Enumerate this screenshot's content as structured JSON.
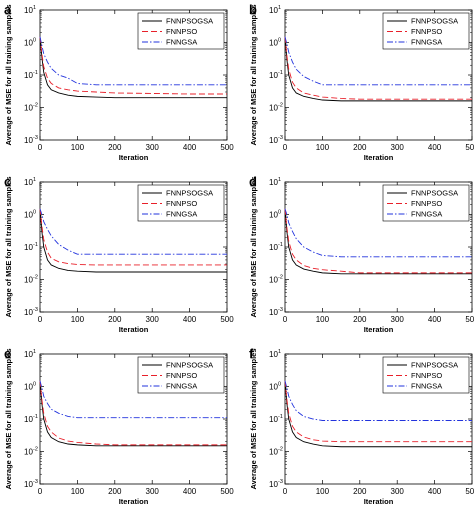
{
  "chart_data": [
    {
      "panel": "a",
      "type": "line",
      "xlabel": "Iteration",
      "ylabel": "Average of MSE for all training samples",
      "xlim": [
        0,
        500
      ],
      "ylim": [
        0.001,
        10
      ],
      "yscale": "log",
      "xticks": [
        0,
        100,
        200,
        300,
        400,
        500
      ],
      "yticks": [
        "10^{-3}",
        "10^{-2}",
        "10^{-1}",
        "10^{0}",
        "10^{1}"
      ],
      "legend_position": "top-right",
      "x": [
        0,
        5,
        10,
        20,
        30,
        50,
        75,
        100,
        150,
        200,
        300,
        400,
        500
      ],
      "series": [
        {
          "name": "FNNPSOGSA",
          "color": "#000000",
          "dash": "solid",
          "values": [
            1.5,
            0.35,
            0.12,
            0.05,
            0.035,
            0.028,
            0.024,
            0.022,
            0.021,
            0.02,
            0.02,
            0.02,
            0.02
          ]
        },
        {
          "name": "FNNPSO",
          "color": "#e8202a",
          "dash": "dashed",
          "values": [
            1.5,
            0.45,
            0.18,
            0.08,
            0.055,
            0.04,
            0.035,
            0.032,
            0.03,
            0.028,
            0.027,
            0.026,
            0.026
          ]
        },
        {
          "name": "FNNGSA",
          "color": "#2233dd",
          "dash": "dashdot",
          "values": [
            1.5,
            0.8,
            0.45,
            0.25,
            0.16,
            0.1,
            0.08,
            0.055,
            0.05,
            0.05,
            0.05,
            0.05,
            0.05
          ]
        }
      ]
    },
    {
      "panel": "b",
      "type": "line",
      "xlabel": "Iteration",
      "ylabel": "Average of MSE for all training samples",
      "xlim": [
        0,
        500
      ],
      "ylim": [
        0.001,
        10
      ],
      "yscale": "log",
      "xticks": [
        0,
        100,
        200,
        300,
        400,
        500
      ],
      "yticks": [
        "10^{-3}",
        "10^{-2}",
        "10^{-1}",
        "10^{0}",
        "10^{1}"
      ],
      "legend_position": "top-right",
      "x": [
        0,
        5,
        10,
        20,
        30,
        50,
        75,
        100,
        150,
        200,
        300,
        400,
        500
      ],
      "series": [
        {
          "name": "FNNPSOGSA",
          "color": "#000000",
          "dash": "solid",
          "values": [
            1.5,
            0.3,
            0.1,
            0.04,
            0.028,
            0.022,
            0.019,
            0.017,
            0.016,
            0.016,
            0.016,
            0.016,
            0.016
          ]
        },
        {
          "name": "FNNPSO",
          "color": "#e8202a",
          "dash": "dashed",
          "values": [
            1.5,
            0.4,
            0.15,
            0.06,
            0.04,
            0.028,
            0.024,
            0.021,
            0.019,
            0.018,
            0.018,
            0.018,
            0.018
          ]
        },
        {
          "name": "FNNGSA",
          "color": "#2233dd",
          "dash": "dashdot",
          "values": [
            1.5,
            0.9,
            0.5,
            0.25,
            0.15,
            0.09,
            0.065,
            0.05,
            0.05,
            0.05,
            0.05,
            0.05,
            0.05
          ]
        }
      ]
    },
    {
      "panel": "c",
      "type": "line",
      "xlabel": "Iteration",
      "ylabel": "Average of MSE for all training samples",
      "xlim": [
        0,
        500
      ],
      "ylim": [
        0.001,
        10
      ],
      "yscale": "log",
      "xticks": [
        0,
        100,
        200,
        300,
        400,
        500
      ],
      "yticks": [
        "10^{-3}",
        "10^{-2}",
        "10^{-1}",
        "10^{0}",
        "10^{1}"
      ],
      "legend_position": "top-right",
      "x": [
        0,
        5,
        10,
        20,
        30,
        50,
        75,
        100,
        150,
        200,
        300,
        400,
        500
      ],
      "series": [
        {
          "name": "FNNPSOGSA",
          "color": "#000000",
          "dash": "solid",
          "values": [
            1.5,
            0.3,
            0.1,
            0.04,
            0.028,
            0.022,
            0.019,
            0.018,
            0.017,
            0.017,
            0.017,
            0.017,
            0.017
          ]
        },
        {
          "name": "FNNPSO",
          "color": "#e8202a",
          "dash": "dashed",
          "values": [
            1.5,
            0.45,
            0.17,
            0.07,
            0.045,
            0.035,
            0.031,
            0.029,
            0.028,
            0.028,
            0.028,
            0.028,
            0.028
          ]
        },
        {
          "name": "FNNGSA",
          "color": "#2233dd",
          "dash": "dashdot",
          "values": [
            1.5,
            1.0,
            0.6,
            0.35,
            0.22,
            0.12,
            0.08,
            0.06,
            0.06,
            0.06,
            0.06,
            0.06,
            0.06
          ]
        }
      ]
    },
    {
      "panel": "d",
      "type": "line",
      "xlabel": "Iteration",
      "ylabel": "Average of MSE for all training samples",
      "xlim": [
        0,
        500
      ],
      "ylim": [
        0.001,
        10
      ],
      "yscale": "log",
      "xticks": [
        0,
        100,
        200,
        300,
        400,
        500
      ],
      "yticks": [
        "10^{-3}",
        "10^{-2}",
        "10^{-1}",
        "10^{0}",
        "10^{1}"
      ],
      "legend_position": "top-right",
      "x": [
        0,
        5,
        10,
        20,
        30,
        50,
        75,
        100,
        150,
        200,
        300,
        400,
        500
      ],
      "series": [
        {
          "name": "FNNPSOGSA",
          "color": "#000000",
          "dash": "solid",
          "values": [
            1.5,
            0.3,
            0.1,
            0.04,
            0.028,
            0.021,
            0.018,
            0.016,
            0.015,
            0.015,
            0.015,
            0.015,
            0.015
          ]
        },
        {
          "name": "FNNPSO",
          "color": "#e8202a",
          "dash": "dashed",
          "values": [
            1.5,
            0.4,
            0.15,
            0.06,
            0.04,
            0.027,
            0.022,
            0.02,
            0.018,
            0.016,
            0.016,
            0.016,
            0.016
          ]
        },
        {
          "name": "FNNGSA",
          "color": "#2233dd",
          "dash": "dashdot",
          "values": [
            1.5,
            1.0,
            0.55,
            0.3,
            0.18,
            0.1,
            0.07,
            0.055,
            0.05,
            0.05,
            0.05,
            0.05,
            0.05
          ]
        }
      ]
    },
    {
      "panel": "e",
      "type": "line",
      "xlabel": "Iteration",
      "ylabel": "Average of MSE for all training samples",
      "xlim": [
        0,
        500
      ],
      "ylim": [
        0.001,
        10
      ],
      "yscale": "log",
      "xticks": [
        0,
        100,
        200,
        300,
        400,
        500
      ],
      "yticks": [
        "10^{-3}",
        "10^{-2}",
        "10^{-1}",
        "10^{0}",
        "10^{1}"
      ],
      "legend_position": "top-right",
      "x": [
        0,
        5,
        10,
        20,
        30,
        50,
        75,
        100,
        150,
        200,
        300,
        400,
        500
      ],
      "series": [
        {
          "name": "FNNPSOGSA",
          "color": "#000000",
          "dash": "solid",
          "values": [
            1.5,
            0.3,
            0.1,
            0.04,
            0.027,
            0.02,
            0.017,
            0.016,
            0.015,
            0.015,
            0.015,
            0.015,
            0.015
          ]
        },
        {
          "name": "FNNPSO",
          "color": "#e8202a",
          "dash": "dashed",
          "values": [
            1.5,
            0.4,
            0.15,
            0.06,
            0.04,
            0.026,
            0.021,
            0.019,
            0.017,
            0.016,
            0.016,
            0.016,
            0.016
          ]
        },
        {
          "name": "FNNGSA",
          "color": "#2233dd",
          "dash": "dashdot",
          "values": [
            1.5,
            0.9,
            0.5,
            0.3,
            0.2,
            0.15,
            0.12,
            0.11,
            0.11,
            0.11,
            0.11,
            0.11,
            0.11
          ]
        }
      ]
    },
    {
      "panel": "f",
      "type": "line",
      "xlabel": "Iteration",
      "ylabel": "Average of MSE for all training samples",
      "xlim": [
        0,
        500
      ],
      "ylim": [
        0.001,
        10
      ],
      "yscale": "log",
      "xticks": [
        0,
        100,
        200,
        300,
        400,
        500
      ],
      "yticks": [
        "10^{-3}",
        "10^{-2}",
        "10^{-1}",
        "10^{0}",
        "10^{1}"
      ],
      "legend_position": "top-right",
      "x": [
        0,
        5,
        10,
        20,
        30,
        50,
        75,
        100,
        150,
        200,
        300,
        400,
        500
      ],
      "series": [
        {
          "name": "FNNPSOGSA",
          "color": "#000000",
          "dash": "solid",
          "values": [
            1.5,
            0.3,
            0.1,
            0.04,
            0.027,
            0.02,
            0.017,
            0.015,
            0.014,
            0.014,
            0.014,
            0.014,
            0.014
          ]
        },
        {
          "name": "FNNPSO",
          "color": "#e8202a",
          "dash": "dashed",
          "values": [
            1.5,
            0.4,
            0.15,
            0.06,
            0.04,
            0.028,
            0.023,
            0.021,
            0.02,
            0.02,
            0.02,
            0.02,
            0.02
          ]
        },
        {
          "name": "FNNGSA",
          "color": "#2233dd",
          "dash": "dashdot",
          "values": [
            1.5,
            0.9,
            0.5,
            0.28,
            0.18,
            0.12,
            0.1,
            0.09,
            0.09,
            0.09,
            0.09,
            0.09,
            0.09
          ]
        }
      ]
    }
  ]
}
